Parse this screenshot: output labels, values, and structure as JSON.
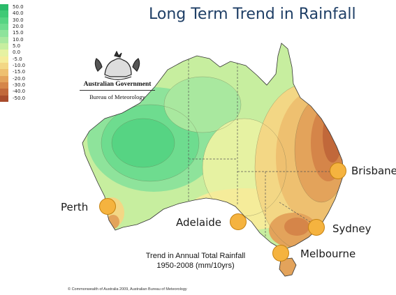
{
  "title": "Long Term Trend in Rainfall",
  "legend": {
    "entries": [
      {
        "label": "50.0",
        "color": "#2bbb6a"
      },
      {
        "label": "40.0",
        "color": "#3fca76"
      },
      {
        "label": "30.0",
        "color": "#56d483"
      },
      {
        "label": "20.0",
        "color": "#6edc8f"
      },
      {
        "label": "15.0",
        "color": "#8ee39b"
      },
      {
        "label": "10.0",
        "color": "#a9e89f"
      },
      {
        "label": "5.0",
        "color": "#c7ee9f"
      },
      {
        "label": "0.0",
        "color": "#e6f2a2"
      },
      {
        "label": "-5.0",
        "color": "#f5ec9a"
      },
      {
        "label": "-10.0",
        "color": "#f3d785"
      },
      {
        "label": "-15.0",
        "color": "#eec070"
      },
      {
        "label": "-20.0",
        "color": "#e3a35b"
      },
      {
        "label": "-30.0",
        "color": "#d58549"
      },
      {
        "label": "-40.0",
        "color": "#c1683a"
      },
      {
        "label": "-50.0",
        "color": "#a84c2c"
      }
    ]
  },
  "organisation": {
    "line1": "Australian Government",
    "line2": "Bureau of Meteorology"
  },
  "cities": [
    {
      "name": "Brisbane"
    },
    {
      "name": "Perth"
    },
    {
      "name": "Adelaide"
    },
    {
      "name": "Sydney"
    },
    {
      "name": "Melbourne"
    }
  ],
  "caption": {
    "line1": "Trend in Annual Total Rainfall",
    "line2": "1950-2008 (mm/10yrs)"
  },
  "copyright": "© Commonwealth of Australia 2009, Australian Bureau of Meteorology",
  "colors": {
    "title": "#1f3f66",
    "city_marker": "#f5b33f"
  }
}
